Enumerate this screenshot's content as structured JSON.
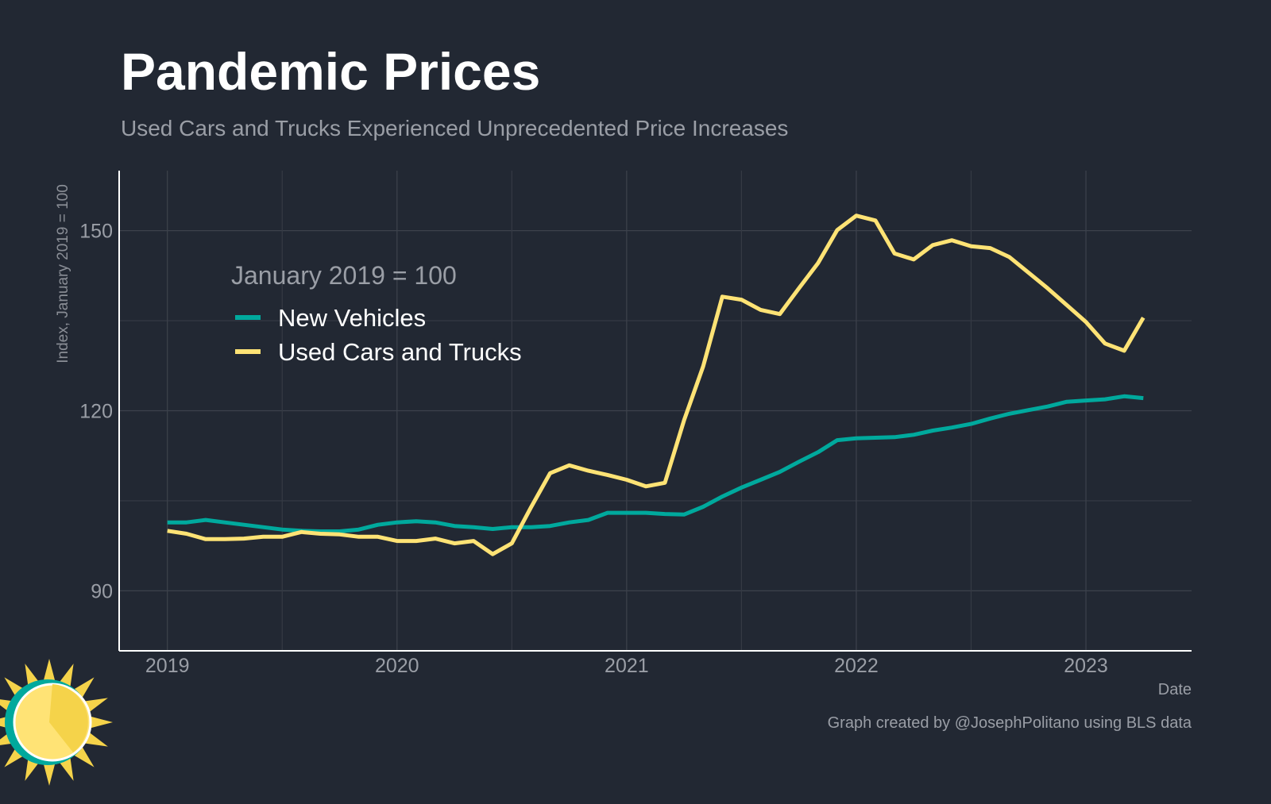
{
  "chart_data": {
    "type": "line",
    "title": "Pandemic Prices",
    "subtitle": "Used Cars and Trucks Experienced Unprecedented Price Increases",
    "xlabel": "Date",
    "ylabel": "Index, January 2019 = 100",
    "legend_title": "January 2019 = 100",
    "legend_position": "top-left",
    "grid": true,
    "ylim": [
      80,
      160
    ],
    "xlim": [
      "2018-10",
      "2023-06"
    ],
    "y_ticks": [
      90,
      120,
      150
    ],
    "x_ticks": [
      "2019",
      "2020",
      "2021",
      "2022",
      "2023"
    ],
    "x_start": "2019-01",
    "frequency": "monthly",
    "series": [
      {
        "name": "New Vehicles",
        "color": "#00a99d",
        "values": [
          101.4,
          101.4,
          101.8,
          101.4,
          101.0,
          100.6,
          100.2,
          100.0,
          99.9,
          99.9,
          100.2,
          101.0,
          101.4,
          101.6,
          101.4,
          100.8,
          100.6,
          100.3,
          100.6,
          100.6,
          100.8,
          101.4,
          101.8,
          103.0,
          103.0,
          103.0,
          102.8,
          102.7,
          104.0,
          105.7,
          107.2,
          108.5,
          109.8,
          111.5,
          113.1,
          115.1,
          115.4,
          115.5,
          115.6,
          116.0,
          116.7,
          117.2,
          117.8,
          118.7,
          119.5,
          120.1,
          120.7,
          121.5,
          121.7,
          121.9,
          122.4,
          122.1
        ]
      },
      {
        "name": "Used Cars and Trucks",
        "color": "#ffe375",
        "values": [
          100.0,
          99.5,
          98.6,
          98.6,
          98.7,
          99.0,
          99.0,
          99.8,
          99.5,
          99.4,
          99.0,
          99.0,
          98.3,
          98.3,
          98.7,
          97.9,
          98.3,
          96.1,
          97.9,
          103.9,
          109.6,
          110.9,
          110.0,
          109.3,
          108.5,
          107.4,
          108.0,
          118.4,
          127.4,
          139.0,
          138.5,
          136.8,
          136.1,
          140.4,
          144.6,
          150.1,
          152.5,
          151.7,
          146.2,
          145.2,
          147.6,
          148.4,
          147.4,
          147.1,
          145.6,
          143.0,
          140.4,
          137.6,
          134.8,
          131.2,
          130.0,
          135.5
        ]
      }
    ],
    "credit": "Graph created by @JosephPolitano using BLS data"
  }
}
